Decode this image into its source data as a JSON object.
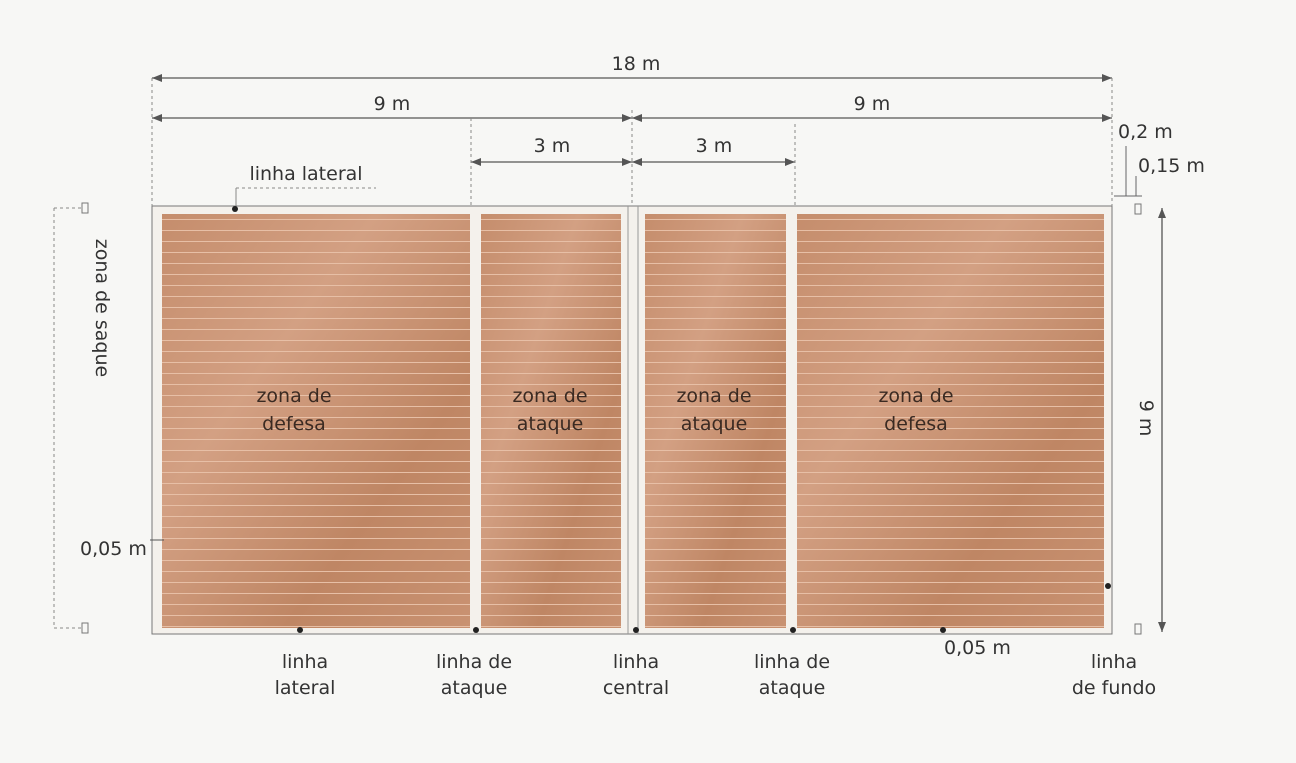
{
  "diagram": {
    "dimensions": {
      "total_length": "18 m",
      "half_length_left": "9 m",
      "half_length_right": "9 m",
      "attack_left": "3 m",
      "attack_right": "3 m",
      "width": "9 m",
      "endline_offset": "0,2 m",
      "endline_mark": "0,15 m",
      "line_width_left": "0,05 m",
      "line_width_bottom": "0,05 m"
    },
    "zones": {
      "defense_left": [
        "zona de",
        "defesa"
      ],
      "attack_left": [
        "zona de",
        "ataque"
      ],
      "attack_right": [
        "zona de",
        "ataque"
      ],
      "defense_right": [
        "zona de",
        "defesa"
      ]
    },
    "side_label": "zona de saque",
    "top_label": "linha lateral",
    "bottom_labels": {
      "lateral": [
        "linha",
        "lateral"
      ],
      "attack_left": [
        "linha de",
        "ataque"
      ],
      "central": [
        "linha",
        "central"
      ],
      "attack_right": [
        "linha de",
        "ataque"
      ],
      "endline": [
        "linha",
        "de fundo"
      ]
    },
    "colors": {
      "court": "#c9906e",
      "court_dark": "#b47a58",
      "lines": "#f4f1ec",
      "stripes": "#d8a486"
    }
  }
}
